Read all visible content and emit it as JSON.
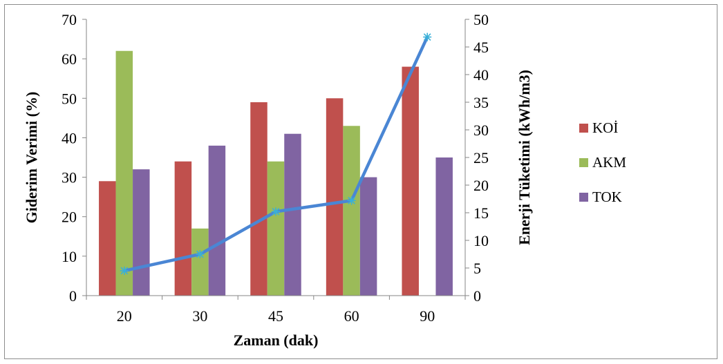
{
  "chart_data": {
    "type": "bar",
    "categories": [
      "20",
      "30",
      "45",
      "60",
      "90"
    ],
    "series": [
      {
        "name": "KOİ",
        "values": [
          29,
          34,
          49,
          50,
          58
        ],
        "color": "#c0504d"
      },
      {
        "name": "AKM",
        "values": [
          62,
          17,
          34,
          43,
          null
        ],
        "color": "#9bbb59"
      },
      {
        "name": "TOK",
        "values": [
          32,
          38,
          41,
          30,
          35
        ],
        "color": "#8064a2"
      }
    ],
    "line_series": {
      "values": [
        4.5,
        7.5,
        15.2,
        17.2,
        46.8
      ],
      "axis": "right",
      "color": "#4a86d4",
      "marker_color": "#3ab0d8"
    },
    "xlabel": "Zaman (dak)",
    "ylabel": "Giderim Verimi (%)",
    "y2label": "Enerji Tüketimi (kWh/m3)",
    "ylim": [
      0,
      70
    ],
    "y2lim": [
      0,
      50
    ],
    "yticks": [
      "0",
      "10",
      "20",
      "30",
      "40",
      "50",
      "60",
      "70"
    ],
    "y2ticks": [
      "0",
      "5",
      "10",
      "15",
      "20",
      "25",
      "30",
      "35",
      "40",
      "45",
      "50"
    ],
    "grid": false,
    "legend_position": "right"
  }
}
